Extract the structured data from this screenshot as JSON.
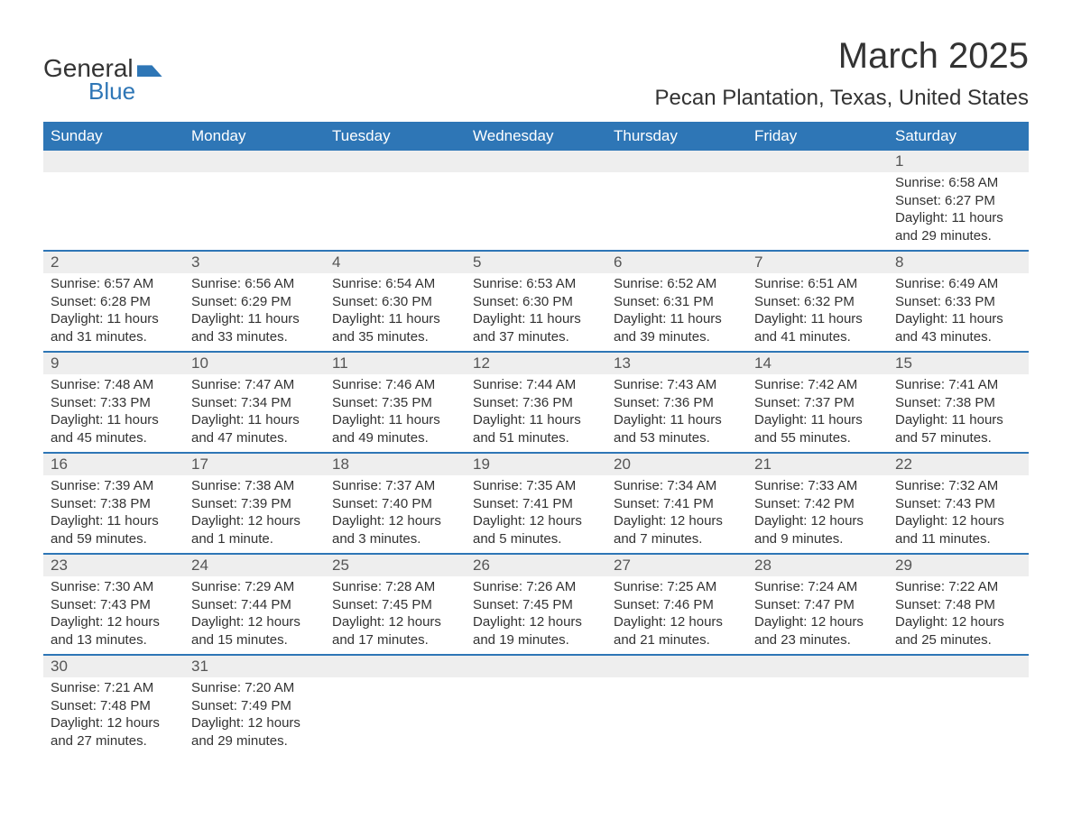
{
  "logo": {
    "line1": "General",
    "line2": "Blue"
  },
  "header": {
    "month_title": "March 2025",
    "location": "Pecan Plantation, Texas, United States"
  },
  "calendar": {
    "header_bg": "#2e76b6",
    "header_fg": "#ffffff",
    "band_bg": "#eeeeee",
    "row_divider": "#2e76b6",
    "text_color": "#333333",
    "day_label_fontsize": 17,
    "body_fontsize": 15,
    "columns": [
      "Sunday",
      "Monday",
      "Tuesday",
      "Wednesday",
      "Thursday",
      "Friday",
      "Saturday"
    ],
    "weeks": [
      [
        {
          "n": "",
          "sr": "",
          "ss": "",
          "dl": ""
        },
        {
          "n": "",
          "sr": "",
          "ss": "",
          "dl": ""
        },
        {
          "n": "",
          "sr": "",
          "ss": "",
          "dl": ""
        },
        {
          "n": "",
          "sr": "",
          "ss": "",
          "dl": ""
        },
        {
          "n": "",
          "sr": "",
          "ss": "",
          "dl": ""
        },
        {
          "n": "",
          "sr": "",
          "ss": "",
          "dl": ""
        },
        {
          "n": "1",
          "sr": "Sunrise: 6:58 AM",
          "ss": "Sunset: 6:27 PM",
          "dl": "Daylight: 11 hours and 29 minutes."
        }
      ],
      [
        {
          "n": "2",
          "sr": "Sunrise: 6:57 AM",
          "ss": "Sunset: 6:28 PM",
          "dl": "Daylight: 11 hours and 31 minutes."
        },
        {
          "n": "3",
          "sr": "Sunrise: 6:56 AM",
          "ss": "Sunset: 6:29 PM",
          "dl": "Daylight: 11 hours and 33 minutes."
        },
        {
          "n": "4",
          "sr": "Sunrise: 6:54 AM",
          "ss": "Sunset: 6:30 PM",
          "dl": "Daylight: 11 hours and 35 minutes."
        },
        {
          "n": "5",
          "sr": "Sunrise: 6:53 AM",
          "ss": "Sunset: 6:30 PM",
          "dl": "Daylight: 11 hours and 37 minutes."
        },
        {
          "n": "6",
          "sr": "Sunrise: 6:52 AM",
          "ss": "Sunset: 6:31 PM",
          "dl": "Daylight: 11 hours and 39 minutes."
        },
        {
          "n": "7",
          "sr": "Sunrise: 6:51 AM",
          "ss": "Sunset: 6:32 PM",
          "dl": "Daylight: 11 hours and 41 minutes."
        },
        {
          "n": "8",
          "sr": "Sunrise: 6:49 AM",
          "ss": "Sunset: 6:33 PM",
          "dl": "Daylight: 11 hours and 43 minutes."
        }
      ],
      [
        {
          "n": "9",
          "sr": "Sunrise: 7:48 AM",
          "ss": "Sunset: 7:33 PM",
          "dl": "Daylight: 11 hours and 45 minutes."
        },
        {
          "n": "10",
          "sr": "Sunrise: 7:47 AM",
          "ss": "Sunset: 7:34 PM",
          "dl": "Daylight: 11 hours and 47 minutes."
        },
        {
          "n": "11",
          "sr": "Sunrise: 7:46 AM",
          "ss": "Sunset: 7:35 PM",
          "dl": "Daylight: 11 hours and 49 minutes."
        },
        {
          "n": "12",
          "sr": "Sunrise: 7:44 AM",
          "ss": "Sunset: 7:36 PM",
          "dl": "Daylight: 11 hours and 51 minutes."
        },
        {
          "n": "13",
          "sr": "Sunrise: 7:43 AM",
          "ss": "Sunset: 7:36 PM",
          "dl": "Daylight: 11 hours and 53 minutes."
        },
        {
          "n": "14",
          "sr": "Sunrise: 7:42 AM",
          "ss": "Sunset: 7:37 PM",
          "dl": "Daylight: 11 hours and 55 minutes."
        },
        {
          "n": "15",
          "sr": "Sunrise: 7:41 AM",
          "ss": "Sunset: 7:38 PM",
          "dl": "Daylight: 11 hours and 57 minutes."
        }
      ],
      [
        {
          "n": "16",
          "sr": "Sunrise: 7:39 AM",
          "ss": "Sunset: 7:38 PM",
          "dl": "Daylight: 11 hours and 59 minutes."
        },
        {
          "n": "17",
          "sr": "Sunrise: 7:38 AM",
          "ss": "Sunset: 7:39 PM",
          "dl": "Daylight: 12 hours and 1 minute."
        },
        {
          "n": "18",
          "sr": "Sunrise: 7:37 AM",
          "ss": "Sunset: 7:40 PM",
          "dl": "Daylight: 12 hours and 3 minutes."
        },
        {
          "n": "19",
          "sr": "Sunrise: 7:35 AM",
          "ss": "Sunset: 7:41 PM",
          "dl": "Daylight: 12 hours and 5 minutes."
        },
        {
          "n": "20",
          "sr": "Sunrise: 7:34 AM",
          "ss": "Sunset: 7:41 PM",
          "dl": "Daylight: 12 hours and 7 minutes."
        },
        {
          "n": "21",
          "sr": "Sunrise: 7:33 AM",
          "ss": "Sunset: 7:42 PM",
          "dl": "Daylight: 12 hours and 9 minutes."
        },
        {
          "n": "22",
          "sr": "Sunrise: 7:32 AM",
          "ss": "Sunset: 7:43 PM",
          "dl": "Daylight: 12 hours and 11 minutes."
        }
      ],
      [
        {
          "n": "23",
          "sr": "Sunrise: 7:30 AM",
          "ss": "Sunset: 7:43 PM",
          "dl": "Daylight: 12 hours and 13 minutes."
        },
        {
          "n": "24",
          "sr": "Sunrise: 7:29 AM",
          "ss": "Sunset: 7:44 PM",
          "dl": "Daylight: 12 hours and 15 minutes."
        },
        {
          "n": "25",
          "sr": "Sunrise: 7:28 AM",
          "ss": "Sunset: 7:45 PM",
          "dl": "Daylight: 12 hours and 17 minutes."
        },
        {
          "n": "26",
          "sr": "Sunrise: 7:26 AM",
          "ss": "Sunset: 7:45 PM",
          "dl": "Daylight: 12 hours and 19 minutes."
        },
        {
          "n": "27",
          "sr": "Sunrise: 7:25 AM",
          "ss": "Sunset: 7:46 PM",
          "dl": "Daylight: 12 hours and 21 minutes."
        },
        {
          "n": "28",
          "sr": "Sunrise: 7:24 AM",
          "ss": "Sunset: 7:47 PM",
          "dl": "Daylight: 12 hours and 23 minutes."
        },
        {
          "n": "29",
          "sr": "Sunrise: 7:22 AM",
          "ss": "Sunset: 7:48 PM",
          "dl": "Daylight: 12 hours and 25 minutes."
        }
      ],
      [
        {
          "n": "30",
          "sr": "Sunrise: 7:21 AM",
          "ss": "Sunset: 7:48 PM",
          "dl": "Daylight: 12 hours and 27 minutes."
        },
        {
          "n": "31",
          "sr": "Sunrise: 7:20 AM",
          "ss": "Sunset: 7:49 PM",
          "dl": "Daylight: 12 hours and 29 minutes."
        },
        {
          "n": "",
          "sr": "",
          "ss": "",
          "dl": ""
        },
        {
          "n": "",
          "sr": "",
          "ss": "",
          "dl": ""
        },
        {
          "n": "",
          "sr": "",
          "ss": "",
          "dl": ""
        },
        {
          "n": "",
          "sr": "",
          "ss": "",
          "dl": ""
        },
        {
          "n": "",
          "sr": "",
          "ss": "",
          "dl": ""
        }
      ]
    ]
  }
}
